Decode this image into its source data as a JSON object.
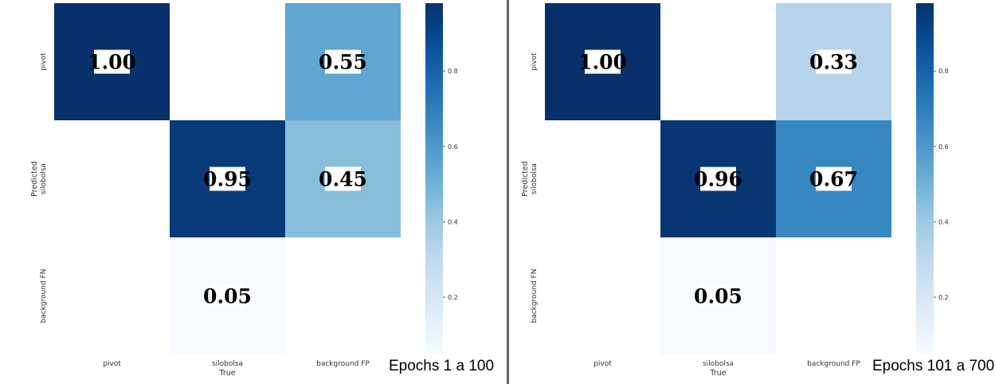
{
  "chart_data": [
    {
      "type": "heatmap",
      "title": "",
      "xlabel": "True",
      "ylabel": "Predicted",
      "x_categories": [
        "pivot",
        "silobolsa",
        "background FP"
      ],
      "y_categories": [
        "pivot",
        "silobolsa",
        "background FN"
      ],
      "cells": [
        [
          1.0,
          null,
          0.55
        ],
        [
          null,
          0.95,
          0.45
        ],
        [
          null,
          0.05,
          null
        ]
      ],
      "colorbar": {
        "ticks": [
          "0.2",
          "0.4",
          "0.6",
          "0.8"
        ],
        "range": [
          0.05,
          0.98
        ]
      },
      "colormap": "Blues",
      "caption": "Epochs 1 a 100"
    },
    {
      "type": "heatmap",
      "title": "",
      "xlabel": "True",
      "ylabel": "Predicted",
      "x_categories": [
        "pivot",
        "silobolsa",
        "background FP"
      ],
      "y_categories": [
        "pivot",
        "silobolsa",
        "background FN"
      ],
      "cells": [
        [
          1.0,
          null,
          0.33
        ],
        [
          null,
          0.96,
          0.67
        ],
        [
          null,
          0.05,
          null
        ]
      ],
      "colorbar": {
        "ticks": [
          "0.2",
          "0.4",
          "0.6",
          "0.8"
        ],
        "range": [
          0.05,
          0.98
        ]
      },
      "colormap": "Blues",
      "caption": "Epochs 101 a 700"
    }
  ]
}
